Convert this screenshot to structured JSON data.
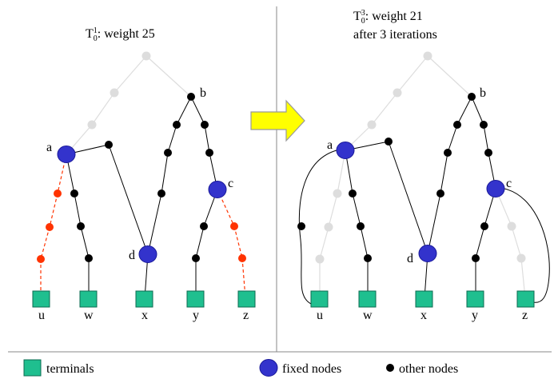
{
  "colors": {
    "fixed": "#3333CC",
    "fixed_stroke": "#1a1a99",
    "terminal": "#1FBF8F",
    "terminal_stroke": "#0c6b50",
    "other": "#000000",
    "removed_node": "#FF3300",
    "faded": "#DDDDDD",
    "arrow_fill": "#FFFF00",
    "arrow_stroke": "#999999",
    "divider": "#888888"
  },
  "left_panel": {
    "title_base": "T",
    "title_sub": "0",
    "title_sup": "1",
    "title_rest": ": weight 25",
    "node_labels": {
      "a": "a",
      "b": "b",
      "c": "c",
      "d": "d"
    },
    "terminal_labels": [
      "u",
      "w",
      "x",
      "y",
      "z"
    ]
  },
  "right_panel": {
    "title_base": "T",
    "title_sub": "0",
    "title_sup": "3",
    "title_rest": ": weight 21",
    "title_line2": "after 3 iterations",
    "node_labels": {
      "a": "a",
      "b": "b",
      "c": "c",
      "d": "d"
    },
    "terminal_labels": [
      "u",
      "w",
      "x",
      "y",
      "z"
    ]
  },
  "legend": {
    "terminals": "terminals",
    "fixed_nodes": "fixed nodes",
    "other_nodes": "other nodes"
  }
}
